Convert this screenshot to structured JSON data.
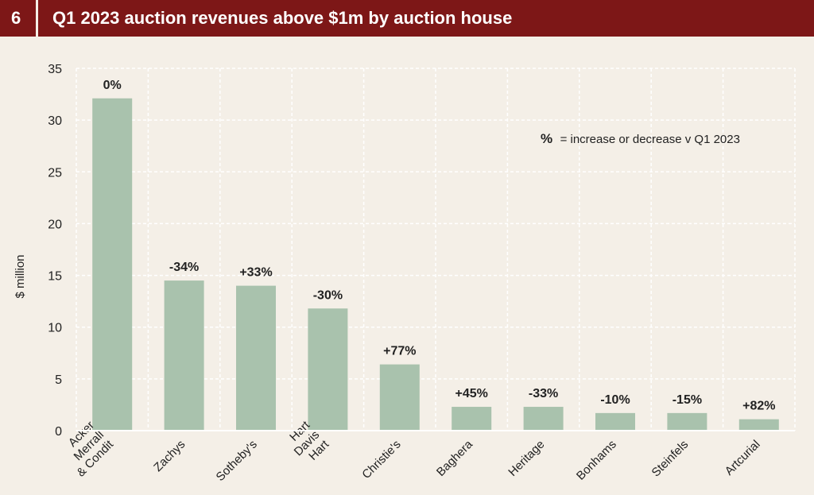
{
  "header": {
    "number": "6",
    "title": "Q1 2023 auction revenues above $1m by auction house"
  },
  "colors": {
    "header_bg": "#7d1717",
    "bar": "#a9c2ad",
    "grid": "#ffffff",
    "plot_bg": "#f4efe7",
    "text": "#222222"
  },
  "chart_data": {
    "type": "bar",
    "title": "Q1 2023 auction revenues above $1m by auction house",
    "xlabel": "",
    "ylabel": "$ million",
    "ylim": [
      0,
      35
    ],
    "yticks": [
      0,
      5,
      10,
      15,
      20,
      25,
      30,
      35
    ],
    "grid": true,
    "annotation_key": "%",
    "annotation_text": "= increase or decrease v Q1 2023",
    "categories": [
      [
        "Acker",
        "Merrall",
        "& Condit"
      ],
      [
        "Zachys"
      ],
      [
        "Sotheby's"
      ],
      [
        "Hart",
        "Davis",
        "Hart"
      ],
      [
        "Christie's"
      ],
      [
        "Baghera"
      ],
      [
        "Heritage"
      ],
      [
        "Bonhams"
      ],
      [
        "Steinfels"
      ],
      [
        "Artcurial"
      ]
    ],
    "values": [
      32.1,
      14.5,
      14.0,
      11.8,
      6.4,
      2.3,
      2.3,
      1.7,
      1.7,
      1.1
    ],
    "changes": [
      "0%",
      "-34%",
      "+33%",
      "-30%",
      "+77%",
      "+45%",
      "-33%",
      "-10%",
      "-15%",
      "+82%"
    ]
  }
}
